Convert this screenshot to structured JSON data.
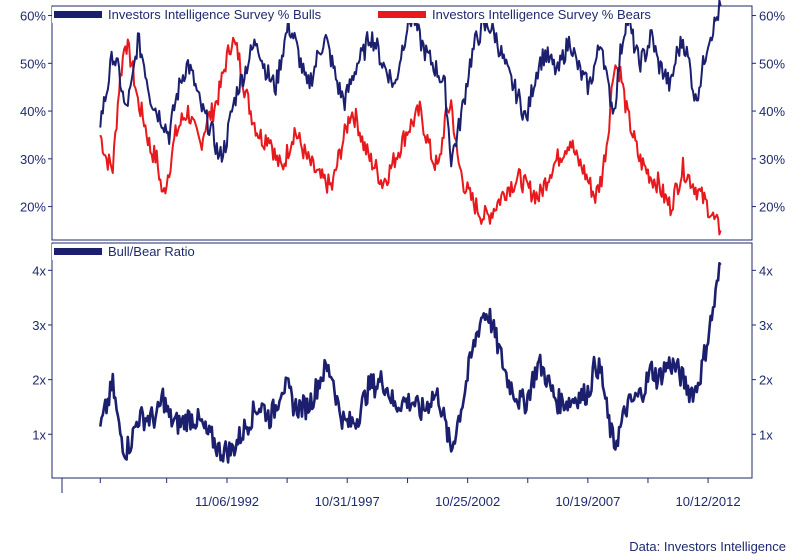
{
  "chart_data": [
    {
      "type": "line",
      "panel": "top",
      "series": [
        {
          "name": "Investors Intelligence Survey % Bulls",
          "color": "#1b1f6e",
          "values": [
            38,
            44,
            52,
            48,
            40,
            45,
            55,
            50,
            43,
            40,
            38,
            35,
            42,
            47,
            50,
            46,
            41,
            38,
            35,
            30,
            33,
            40,
            45,
            48,
            52,
            55,
            50,
            47,
            45,
            52,
            58,
            55,
            50,
            45,
            48,
            53,
            55,
            50,
            45,
            42,
            46,
            50,
            52,
            56,
            54,
            50,
            48,
            45,
            52,
            58,
            60,
            55,
            52,
            50,
            48,
            45,
            30,
            35,
            42,
            50,
            55,
            57,
            58,
            56,
            52,
            48,
            45,
            42,
            38,
            45,
            50,
            52,
            50,
            48,
            52,
            55,
            50,
            47,
            45,
            50,
            55,
            45,
            40,
            52,
            60,
            55,
            50,
            52,
            56,
            50,
            48,
            45,
            52,
            55,
            50,
            42,
            48,
            55,
            58,
            62
          ]
        },
        {
          "name": "Investors Intelligence Survey % Bears",
          "color": "#e8191d",
          "values": [
            35,
            30,
            28,
            45,
            55,
            50,
            42,
            38,
            32,
            30,
            22,
            28,
            35,
            38,
            40,
            36,
            33,
            38,
            40,
            44,
            50,
            55,
            52,
            45,
            40,
            36,
            34,
            35,
            30,
            28,
            32,
            36,
            33,
            30,
            28,
            26,
            25,
            24,
            30,
            35,
            40,
            38,
            33,
            30,
            28,
            25,
            27,
            30,
            33,
            36,
            38,
            40,
            35,
            30,
            28,
            38,
            42,
            30,
            25,
            22,
            20,
            18,
            18,
            20,
            22,
            24,
            25,
            26,
            24,
            23,
            22,
            25,
            28,
            30,
            32,
            34,
            30,
            28,
            25,
            22,
            26,
            35,
            50,
            48,
            40,
            35,
            30,
            28,
            26,
            25,
            22,
            20,
            24,
            28,
            26,
            24,
            22,
            20,
            17,
            15
          ]
        }
      ],
      "x_start": 1987.6,
      "x_end": 2013.3,
      "ylim": [
        13,
        62
      ],
      "yticks": [
        "20%",
        "30%",
        "40%",
        "50%",
        "60%"
      ],
      "ytick_values": [
        20,
        30,
        40,
        50,
        60
      ]
    },
    {
      "type": "line",
      "panel": "bottom",
      "series": [
        {
          "name": "Bull/Bear Ratio",
          "color": "#1b1f6e",
          "values": [
            1.1,
            1.5,
            1.9,
            1.1,
            0.7,
            0.9,
            1.3,
            1.3,
            1.3,
            1.3,
            1.7,
            1.3,
            1.2,
            1.2,
            1.3,
            1.3,
            1.2,
            1.0,
            0.9,
            0.7,
            0.7,
            0.7,
            0.9,
            1.1,
            1.3,
            1.5,
            1.5,
            1.3,
            1.5,
            1.9,
            1.8,
            1.5,
            1.5,
            1.5,
            1.7,
            2.0,
            2.2,
            2.1,
            1.5,
            1.2,
            1.2,
            1.3,
            1.6,
            1.9,
            1.9,
            2.0,
            1.8,
            1.5,
            1.6,
            1.6,
            1.6,
            1.4,
            1.5,
            1.7,
            1.7,
            1.2,
            0.7,
            1.2,
            1.7,
            2.3,
            2.8,
            3.2,
            3.2,
            2.8,
            2.4,
            2.0,
            1.8,
            1.6,
            1.6,
            2.0,
            2.3,
            2.1,
            1.8,
            1.6,
            1.6,
            1.6,
            1.7,
            1.7,
            1.8,
            2.3,
            2.1,
            1.3,
            0.8,
            1.1,
            1.5,
            1.6,
            1.7,
            1.9,
            2.2,
            2.0,
            2.2,
            2.3,
            2.2,
            2.0,
            1.8,
            1.8,
            2.2,
            2.8,
            3.4,
            4.1
          ]
        }
      ],
      "x_start": 1987.6,
      "x_end": 2013.3,
      "ylim": [
        0.2,
        4.5
      ],
      "yticks": [
        "1x",
        "2x",
        "3x",
        "4x"
      ],
      "ytick_values": [
        1,
        2,
        3,
        4
      ]
    }
  ],
  "x_axis": {
    "range": [
      1985.6,
      2014.6
    ],
    "labels": [
      "11/06/1992",
      "10/31/1997",
      "10/25/2002",
      "10/19/2007",
      "10/12/2012"
    ],
    "label_years": [
      1992.85,
      1997.83,
      2002.82,
      2007.8,
      2012.78
    ],
    "minor_tick_years": [
      1987.6,
      1990.35,
      1992.85,
      1995.34,
      1997.83,
      2000.33,
      2002.82,
      2005.31,
      2007.8,
      2010.29,
      2012.78
    ]
  },
  "source_label": "Data: Investors Intelligence",
  "colors": {
    "axis": "#1f2a6e",
    "bulls": "#1b1f6e",
    "bears": "#e8191d"
  }
}
